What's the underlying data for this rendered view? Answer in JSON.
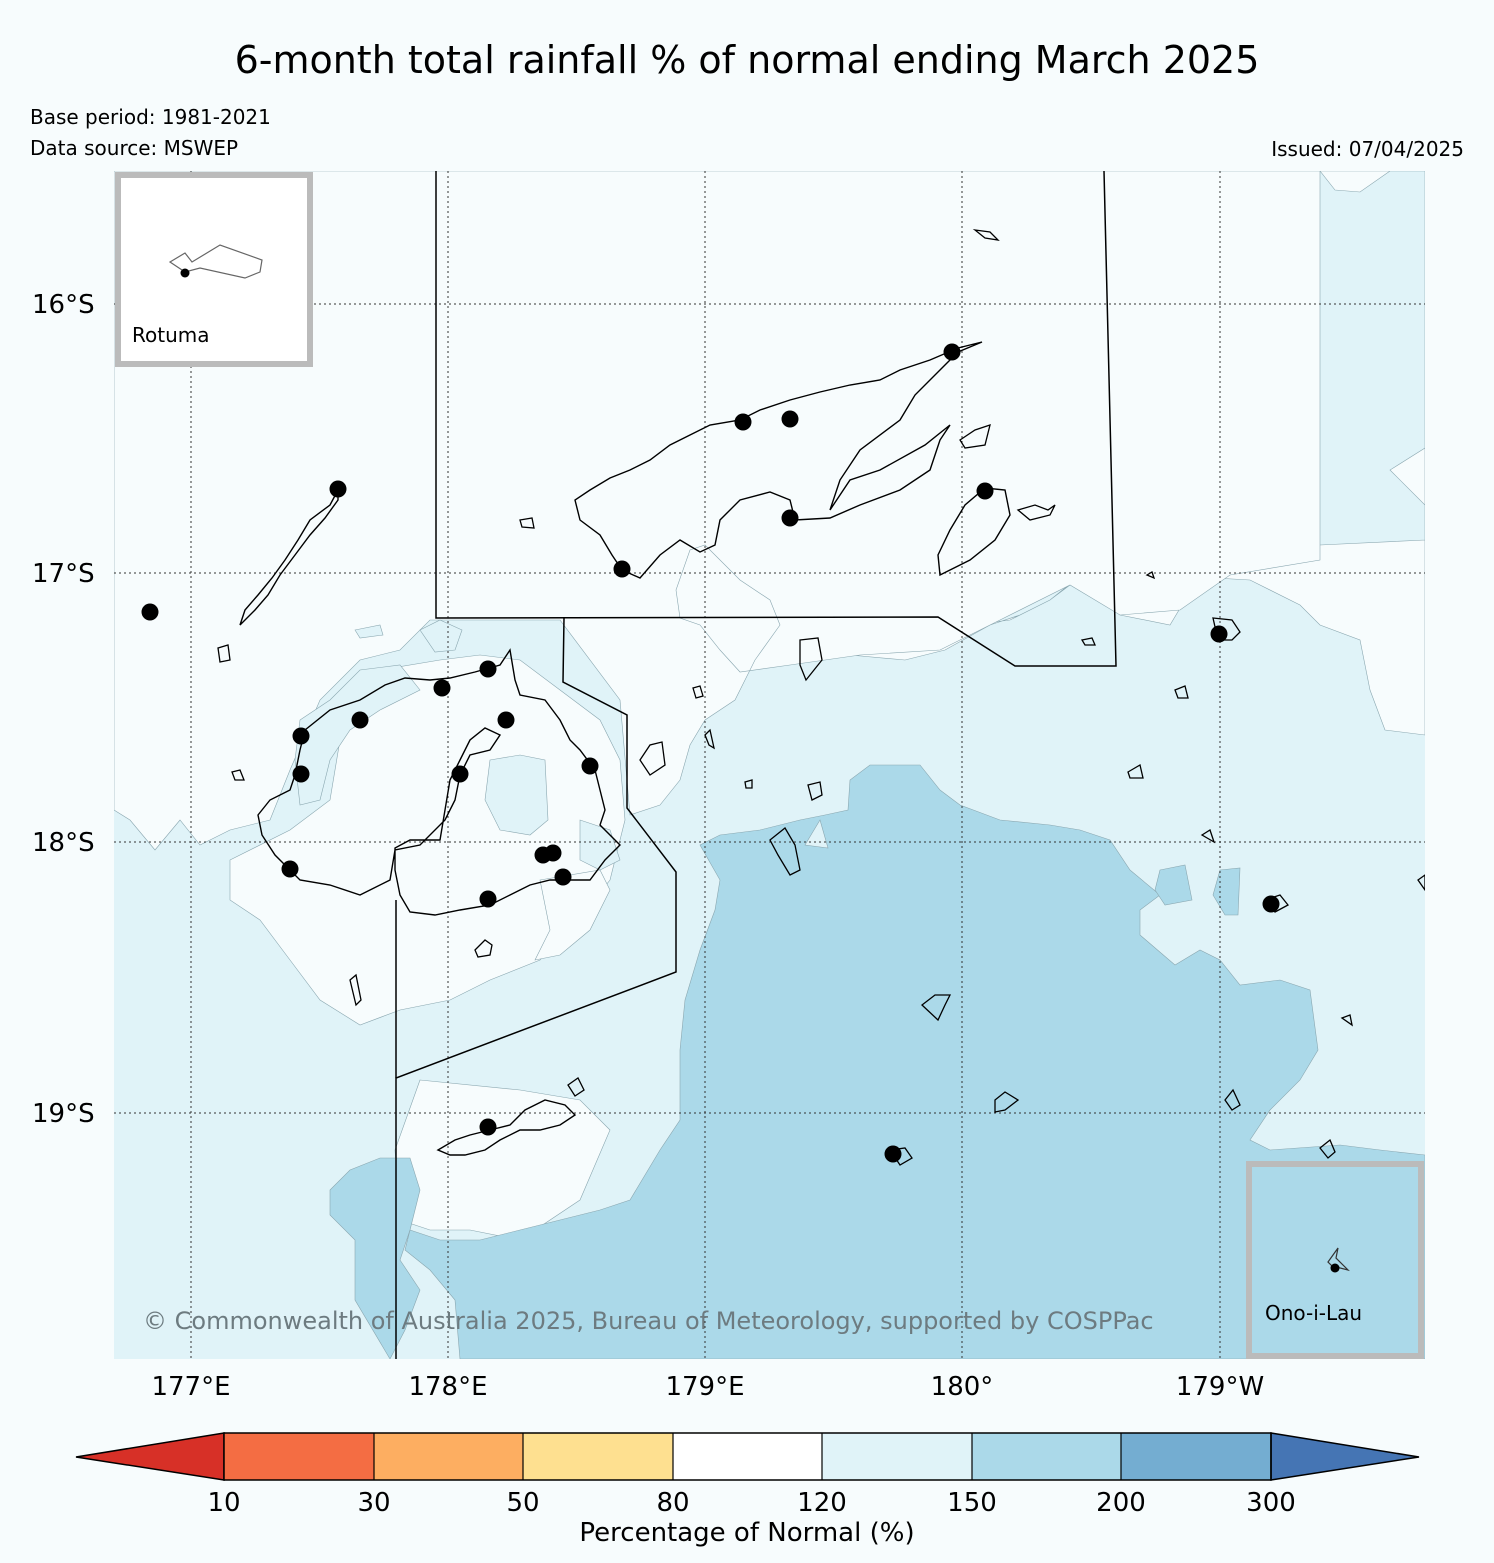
{
  "title": "6-month total rainfall % of normal ending March 2025",
  "base_period": "Base period: 1981-2021",
  "data_source": "Data source: MSWEP",
  "issued": "Issued: 07/04/2025",
  "latitude_labels": [
    "16°S",
    "17°S",
    "18°S",
    "19°S"
  ],
  "longitude_labels": [
    "177°E",
    "178°E",
    "179°E",
    "180°",
    "179°W"
  ],
  "insets": {
    "rotuma": "Rotuma",
    "ono_i_lau": "Ono-i-Lau"
  },
  "copyright": "© Commonwealth of Australia 2025, Bureau of Meteorology, supported by COSPPac",
  "colorbar": {
    "label": "Percentage of Normal (%)",
    "ticks": [
      "10",
      "30",
      "50",
      "80",
      "120",
      "150",
      "200",
      "300"
    ],
    "colors": {
      "below_10": "#d73027",
      "10_30": "#f46d43",
      "30_50": "#fdae61",
      "50_80": "#fee090",
      "80_120": "#ffffff",
      "120_150": "#e0f3f8",
      "150_200": "#abd9e9",
      "200_300": "#74add1",
      "above_300": "#4575b4"
    }
  },
  "colors": {
    "background": "#f7fcfd",
    "ocean_120_150": "#e0f3f8",
    "ocean_150_200": "#abd9e9"
  }
}
